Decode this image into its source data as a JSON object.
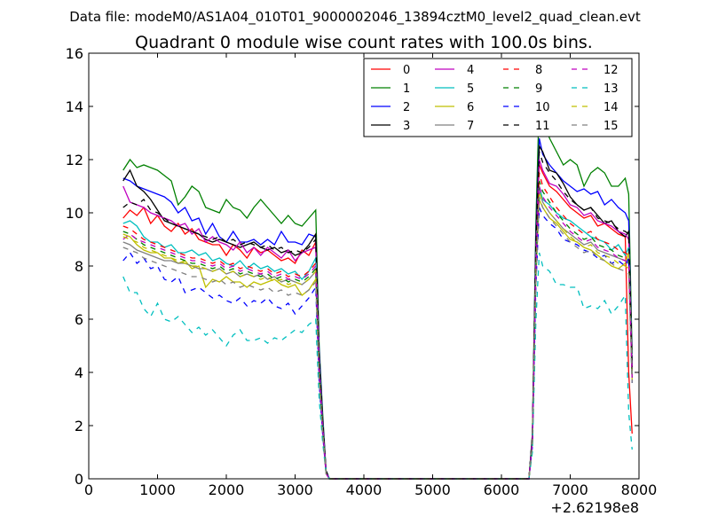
{
  "chart_data": {
    "type": "line",
    "suptitle": "Data file: modeM0/AS1A04_010T01_9000002046_13894cztM0_level2_quad_clean.evt",
    "title": "Quadrant 0 module wise count rates with 100.0s bins.",
    "xlabel": "",
    "ylabel": "",
    "x_offset_label": "+2.62198e8",
    "xlim": [
      0,
      8000
    ],
    "ylim": [
      0,
      16
    ],
    "xticks": [
      0,
      1000,
      2000,
      3000,
      4000,
      5000,
      6000,
      7000,
      8000
    ],
    "yticks": [
      0,
      2,
      4,
      6,
      8,
      10,
      12,
      14,
      16
    ],
    "xtick_labels": [
      "0",
      "1000",
      "2000",
      "3000",
      "4000",
      "5000",
      "6000",
      "7000",
      "8000"
    ],
    "ytick_labels": [
      "0",
      "2",
      "4",
      "6",
      "8",
      "10",
      "12",
      "14",
      "16"
    ],
    "grid": false,
    "legend_position": "top-right",
    "legend_columns": 4,
    "x": [
      500,
      600,
      700,
      800,
      900,
      1000,
      1100,
      1200,
      1300,
      1400,
      1500,
      1600,
      1700,
      1800,
      1900,
      2000,
      2100,
      2200,
      2300,
      2400,
      2500,
      2600,
      2700,
      2800,
      2900,
      3000,
      3100,
      3200,
      3300,
      3350,
      3400,
      3450,
      3500,
      3550,
      6400,
      6450,
      6500,
      6550,
      6600,
      6700,
      6800,
      6900,
      7000,
      7100,
      7200,
      7300,
      7400,
      7500,
      7600,
      7700,
      7800,
      7850,
      7900
    ],
    "series": [
      {
        "name": "0",
        "color": "#ff0000",
        "dash": "solid",
        "values": [
          9.8,
          10.1,
          9.9,
          10.2,
          9.6,
          9.9,
          9.5,
          9.3,
          9.6,
          9.2,
          9.4,
          9.0,
          8.9,
          8.8,
          8.8,
          8.4,
          8.8,
          8.6,
          8.3,
          8.7,
          8.5,
          8.6,
          8.4,
          8.2,
          8.3,
          8.1,
          8.6,
          8.4,
          8.9,
          4.5,
          2.0,
          0.3,
          0,
          0,
          0,
          1.5,
          8.5,
          11.8,
          11.5,
          11.0,
          10.8,
          10.5,
          10.2,
          10.0,
          9.8,
          9.9,
          9.5,
          9.6,
          9.4,
          9.2,
          9.1,
          4.0,
          1.7
        ]
      },
      {
        "name": "1",
        "color": "#008000",
        "dash": "solid",
        "values": [
          11.6,
          12.0,
          11.7,
          11.8,
          11.7,
          11.6,
          11.4,
          11.2,
          10.3,
          10.6,
          11.0,
          10.8,
          10.2,
          10.1,
          10.0,
          10.5,
          10.2,
          10.1,
          9.8,
          10.2,
          10.5,
          10.2,
          9.9,
          9.6,
          9.9,
          9.6,
          9.5,
          9.8,
          10.1,
          5.0,
          2.5,
          0.3,
          0,
          0,
          0,
          1.7,
          9.5,
          14.3,
          13.5,
          12.8,
          12.3,
          11.8,
          12.0,
          11.8,
          11.0,
          11.5,
          11.7,
          11.5,
          11.0,
          11.0,
          11.3,
          10.7,
          4.7
        ]
      },
      {
        "name": "2",
        "color": "#0000ff",
        "dash": "solid",
        "values": [
          11.3,
          11.2,
          11.0,
          10.9,
          10.8,
          10.7,
          10.6,
          10.4,
          10.0,
          10.2,
          9.7,
          9.8,
          9.2,
          9.6,
          9.1,
          8.9,
          9.3,
          8.9,
          8.9,
          9.0,
          8.8,
          9.0,
          8.8,
          9.3,
          8.9,
          8.9,
          8.8,
          9.2,
          9.1,
          4.8,
          2.3,
          0.3,
          0,
          0,
          0,
          1.6,
          9.0,
          12.8,
          12.2,
          11.8,
          11.5,
          11.2,
          11.0,
          10.8,
          10.9,
          10.7,
          10.8,
          10.3,
          10.5,
          10.2,
          10.0,
          9.7,
          4.3
        ]
      },
      {
        "name": "3",
        "color": "#000000",
        "dash": "solid",
        "values": [
          11.2,
          11.6,
          11.0,
          10.8,
          10.5,
          10.1,
          9.7,
          9.6,
          9.5,
          9.4,
          9.3,
          9.2,
          9.0,
          8.9,
          9.0,
          8.9,
          8.8,
          8.7,
          8.8,
          8.9,
          8.7,
          8.6,
          8.7,
          8.5,
          8.6,
          8.4,
          8.5,
          8.8,
          9.2,
          4.6,
          2.2,
          0.3,
          0,
          0,
          0,
          1.6,
          8.8,
          12.5,
          12.3,
          11.6,
          11.5,
          11.1,
          10.6,
          10.3,
          10.1,
          10.2,
          9.9,
          9.6,
          9.7,
          9.3,
          9.1,
          9.3,
          4.2
        ]
      },
      {
        "name": "4",
        "color": "#bf00bf",
        "dash": "solid",
        "values": [
          11.0,
          10.4,
          10.3,
          10.2,
          10.0,
          9.9,
          9.8,
          9.7,
          9.5,
          9.6,
          9.2,
          9.4,
          8.9,
          9.1,
          8.9,
          8.8,
          8.6,
          8.9,
          8.5,
          8.7,
          8.4,
          8.7,
          8.5,
          8.3,
          8.6,
          8.2,
          8.5,
          8.6,
          8.7,
          4.4,
          2.1,
          0.3,
          0,
          0,
          0,
          1.5,
          8.6,
          12.0,
          11.6,
          11.1,
          11.0,
          10.7,
          10.3,
          10.2,
          9.9,
          10.0,
          9.7,
          9.6,
          9.5,
          9.3,
          9.2,
          9.0,
          4.1
        ]
      },
      {
        "name": "5",
        "color": "#00bfbf",
        "dash": "solid",
        "values": [
          9.6,
          9.7,
          9.5,
          9.1,
          8.9,
          8.9,
          8.7,
          8.8,
          8.5,
          8.5,
          8.6,
          8.4,
          8.5,
          8.2,
          8.3,
          8.1,
          8.0,
          8.2,
          7.9,
          8.1,
          7.9,
          8.0,
          7.8,
          7.9,
          7.7,
          7.8,
          7.5,
          7.8,
          8.3,
          4.2,
          2.0,
          0.3,
          0,
          0,
          0,
          1.4,
          8.2,
          11.0,
          10.5,
          10.3,
          10.0,
          9.8,
          9.7,
          9.5,
          9.3,
          9.1,
          9.0,
          8.9,
          8.6,
          8.8,
          8.4,
          8.7,
          3.9
        ]
      },
      {
        "name": "6",
        "color": "#bfbf00",
        "dash": "solid",
        "values": [
          9.2,
          9.1,
          8.8,
          8.6,
          8.5,
          8.5,
          8.3,
          8.3,
          8.1,
          8.2,
          7.9,
          8.0,
          7.2,
          7.5,
          7.4,
          7.6,
          7.4,
          7.4,
          7.2,
          7.4,
          7.3,
          7.4,
          7.5,
          7.3,
          7.2,
          7.3,
          6.9,
          7.1,
          7.5,
          3.8,
          1.8,
          0.2,
          0,
          0,
          0,
          1.3,
          7.5,
          10.5,
          10.2,
          9.8,
          9.6,
          9.3,
          9.0,
          8.9,
          8.7,
          8.6,
          8.4,
          8.2,
          8.0,
          7.9,
          8.1,
          8.5,
          3.7
        ]
      },
      {
        "name": "7",
        "color": "#808080",
        "dash": "solid",
        "values": [
          8.9,
          8.8,
          8.6,
          8.5,
          8.4,
          8.3,
          8.2,
          8.2,
          8.1,
          8.1,
          8.0,
          7.9,
          7.9,
          7.8,
          7.9,
          7.7,
          7.8,
          7.6,
          7.7,
          7.6,
          7.7,
          7.5,
          7.6,
          7.4,
          7.5,
          7.4,
          7.3,
          7.5,
          7.8,
          4.0,
          1.9,
          0.2,
          0,
          0,
          0,
          1.4,
          7.8,
          10.8,
          10.4,
          10.0,
          9.7,
          9.4,
          9.2,
          9.0,
          8.8,
          8.9,
          8.6,
          8.5,
          8.4,
          8.3,
          8.2,
          8.1,
          3.8
        ]
      },
      {
        "name": "8",
        "color": "#ff0000",
        "dash": "dashed",
        "values": [
          9.5,
          9.4,
          9.2,
          9.0,
          8.9,
          8.8,
          8.7,
          8.6,
          8.5,
          8.4,
          8.3,
          8.3,
          8.2,
          8.1,
          8.2,
          8.0,
          8.1,
          7.9,
          8.0,
          7.9,
          7.8,
          7.9,
          7.7,
          7.8,
          7.6,
          7.7,
          7.6,
          7.8,
          8.1,
          4.1,
          1.9,
          0.2,
          0,
          0,
          0,
          1.4,
          8.0,
          11.5,
          11.0,
          10.6,
          10.2,
          9.9,
          9.6,
          9.4,
          9.2,
          9.3,
          9.0,
          8.9,
          8.8,
          8.6,
          8.5,
          8.4,
          3.9
        ]
      },
      {
        "name": "9",
        "color": "#008000",
        "dash": "dashed",
        "values": [
          9.3,
          9.2,
          9.0,
          8.8,
          8.7,
          8.6,
          8.5,
          8.4,
          8.3,
          8.2,
          8.1,
          8.1,
          8.0,
          7.9,
          8.0,
          7.8,
          7.9,
          7.7,
          7.8,
          7.7,
          7.6,
          7.7,
          7.5,
          7.6,
          7.4,
          7.5,
          7.4,
          7.6,
          7.9,
          4.0,
          1.9,
          0.2,
          0,
          0,
          0,
          1.4,
          7.9,
          11.2,
          10.8,
          10.4,
          10.0,
          9.7,
          9.4,
          9.2,
          9.0,
          9.1,
          8.8,
          8.7,
          8.6,
          8.4,
          8.3,
          8.2,
          3.8
        ]
      },
      {
        "name": "10",
        "color": "#0000ff",
        "dash": "dashed",
        "values": [
          8.2,
          8.5,
          8.1,
          8.3,
          7.9,
          8.0,
          7.5,
          7.4,
          7.6,
          7.0,
          7.1,
          7.2,
          7.0,
          6.8,
          6.9,
          6.7,
          6.6,
          6.8,
          6.5,
          6.7,
          6.6,
          6.8,
          6.5,
          6.4,
          6.6,
          6.2,
          6.5,
          6.8,
          7.2,
          3.6,
          1.7,
          0.2,
          0,
          0,
          0,
          1.2,
          7.2,
          10.2,
          9.9,
          9.6,
          9.4,
          9.0,
          8.9,
          8.8,
          8.6,
          8.5,
          8.3,
          8.4,
          8.1,
          8.2,
          8.0,
          8.3,
          3.6
        ]
      },
      {
        "name": "11",
        "color": "#000000",
        "dash": "dashed",
        "values": [
          10.2,
          10.4,
          10.3,
          10.5,
          10.1,
          10.0,
          9.8,
          9.6,
          9.5,
          9.4,
          9.3,
          9.2,
          9.1,
          9.0,
          9.1,
          8.9,
          9.0,
          8.8,
          8.9,
          8.8,
          8.7,
          8.8,
          8.6,
          8.7,
          8.5,
          8.6,
          8.5,
          8.7,
          9.0,
          4.5,
          2.1,
          0.3,
          0,
          0,
          0,
          1.6,
          8.7,
          12.3,
          11.9,
          11.5,
          11.2,
          10.8,
          10.5,
          10.3,
          10.1,
          10.2,
          9.8,
          9.7,
          9.6,
          9.4,
          9.3,
          9.2,
          4.2
        ]
      },
      {
        "name": "12",
        "color": "#bf00bf",
        "dash": "dashed",
        "values": [
          9.0,
          9.2,
          9.0,
          8.9,
          8.8,
          8.7,
          8.6,
          8.5,
          8.4,
          8.3,
          8.2,
          8.2,
          8.1,
          8.0,
          8.1,
          7.9,
          8.0,
          7.8,
          7.9,
          7.8,
          7.7,
          7.8,
          7.6,
          7.7,
          7.5,
          7.6,
          7.5,
          7.7,
          8.0,
          4.0,
          1.9,
          0.2,
          0,
          0,
          0,
          1.4,
          7.9,
          11.0,
          10.6,
          10.2,
          9.9,
          9.6,
          9.3,
          9.1,
          8.9,
          9.0,
          8.7,
          8.6,
          8.5,
          8.3,
          8.2,
          8.1,
          3.8
        ]
      },
      {
        "name": "13",
        "color": "#00bfbf",
        "dash": "dashed",
        "values": [
          7.6,
          7.0,
          7.0,
          6.4,
          6.1,
          6.6,
          6.0,
          5.9,
          6.1,
          5.8,
          5.5,
          5.7,
          5.4,
          5.6,
          5.3,
          5.0,
          5.4,
          5.6,
          5.2,
          5.2,
          5.3,
          5.1,
          5.3,
          5.2,
          5.4,
          5.6,
          5.5,
          5.8,
          6.0,
          3.0,
          1.4,
          0.2,
          0,
          0,
          0,
          1.0,
          5.9,
          8.5,
          8.0,
          7.8,
          7.3,
          7.3,
          7.2,
          7.2,
          6.4,
          6.5,
          6.4,
          6.7,
          6.2,
          6.5,
          6.9,
          2.5,
          1.1
        ]
      },
      {
        "name": "14",
        "color": "#bfbf00",
        "dash": "dashed",
        "values": [
          9.1,
          9.0,
          8.9,
          8.7,
          8.6,
          8.5,
          8.4,
          8.3,
          8.2,
          8.1,
          8.0,
          8.0,
          7.9,
          7.8,
          7.9,
          7.7,
          7.8,
          7.6,
          7.7,
          7.6,
          7.5,
          7.6,
          7.4,
          7.5,
          7.3,
          7.4,
          7.3,
          7.5,
          7.8,
          3.9,
          1.8,
          0.2,
          0,
          0,
          0,
          1.3,
          7.7,
          10.8,
          10.4,
          10.0,
          9.7,
          9.4,
          9.1,
          8.9,
          8.7,
          8.8,
          8.5,
          8.4,
          8.3,
          8.1,
          8.0,
          7.9,
          3.7
        ]
      },
      {
        "name": "15",
        "color": "#808080",
        "dash": "dashed",
        "values": [
          8.7,
          8.6,
          8.5,
          8.3,
          8.2,
          8.1,
          8.0,
          7.9,
          7.8,
          7.7,
          7.6,
          7.6,
          7.5,
          7.4,
          7.5,
          7.3,
          7.4,
          7.2,
          7.3,
          7.2,
          7.1,
          7.2,
          7.0,
          7.1,
          6.9,
          7.0,
          6.9,
          7.1,
          7.4,
          3.7,
          1.7,
          0.2,
          0,
          0,
          0,
          1.3,
          7.4,
          10.6,
          10.2,
          9.8,
          9.5,
          9.2,
          8.9,
          8.7,
          8.5,
          8.6,
          8.3,
          8.2,
          8.1,
          7.9,
          7.8,
          7.7,
          3.6
        ]
      }
    ]
  }
}
